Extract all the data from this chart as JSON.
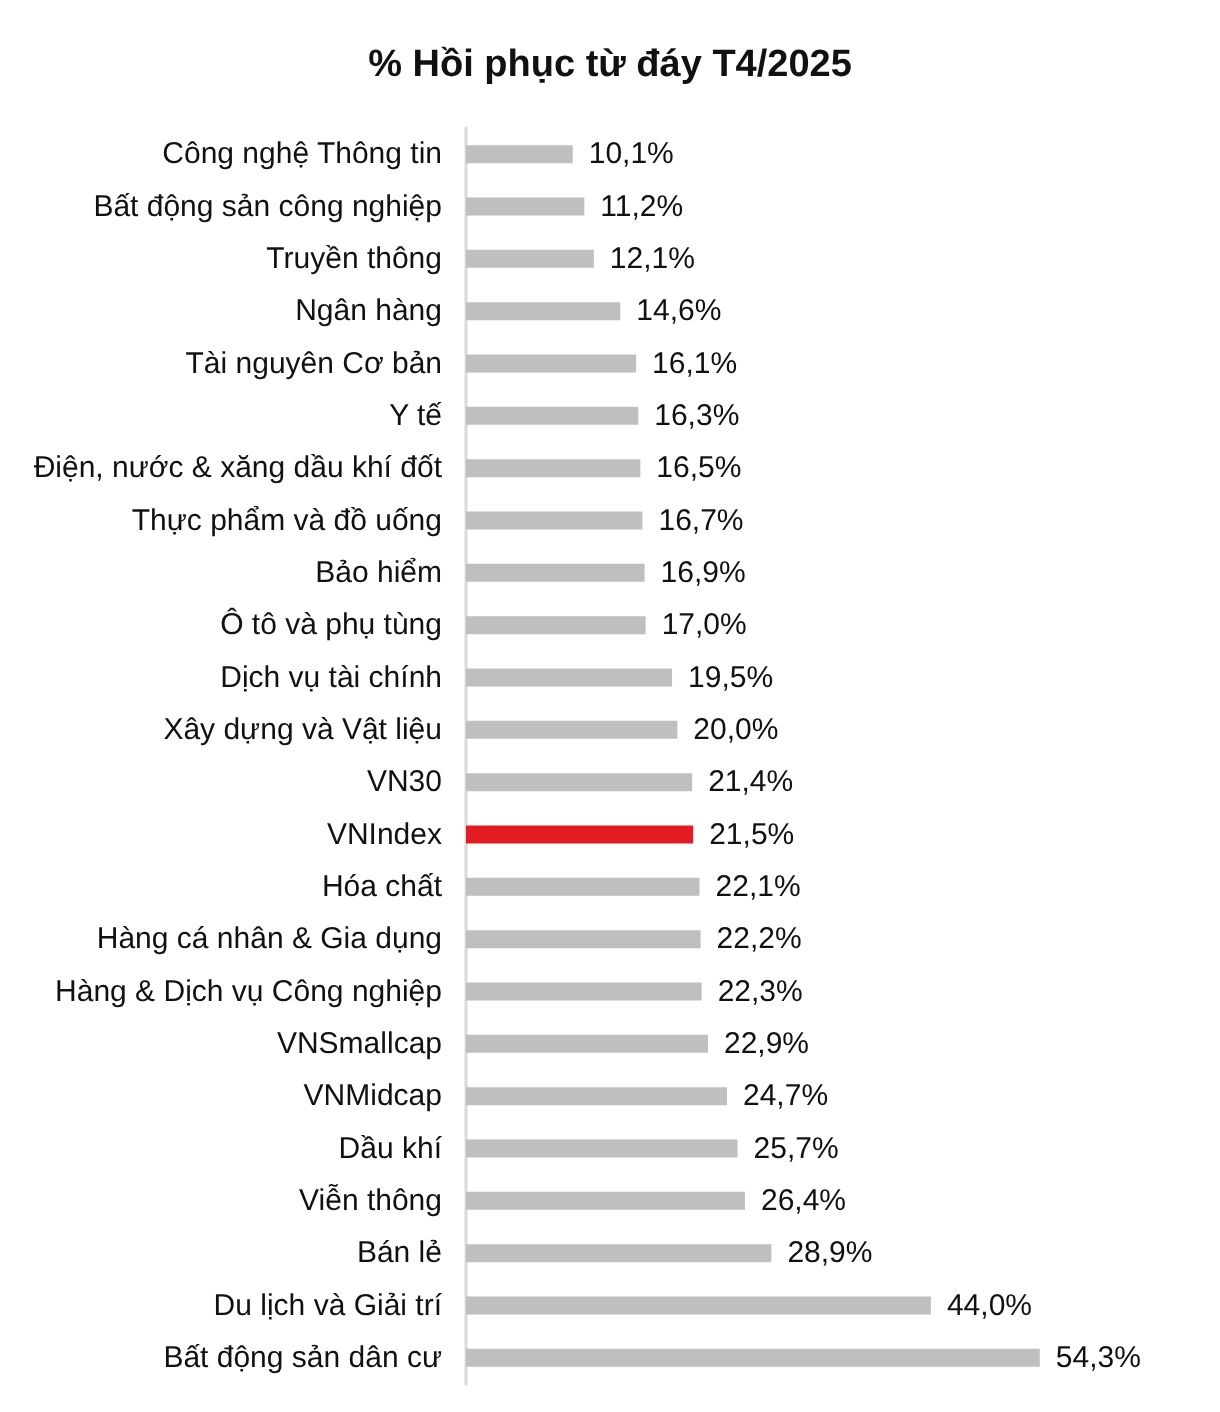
{
  "chart_data": {
    "type": "bar",
    "orientation": "horizontal",
    "title": "% Hồi phục từ đáy T4/2025",
    "categories": [
      "Công nghệ Thông tin",
      "Bất động sản công nghiệp",
      "Truyền thông",
      "Ngân hàng",
      "Tài nguyên Cơ bản",
      "Y tế",
      "Điện, nước & xăng dầu khí đốt",
      "Thực phẩm và đồ uống",
      "Bảo hiểm",
      "Ô tô và phụ tùng",
      "Dịch vụ tài chính",
      "Xây dựng và Vật liệu",
      "VN30",
      "VNIndex",
      "Hóa chất",
      "Hàng cá nhân & Gia dụng",
      "Hàng & Dịch vụ Công nghiệp",
      "VNSmallcap",
      "VNMidcap",
      "Dầu khí",
      "Viễn thông",
      "Bán lẻ",
      "Du lịch và Giải trí",
      "Bất động sản dân cư"
    ],
    "values": [
      10.1,
      11.2,
      12.1,
      14.6,
      16.1,
      16.3,
      16.5,
      16.7,
      16.9,
      17.0,
      19.5,
      20.0,
      21.4,
      21.5,
      22.1,
      22.2,
      22.3,
      22.9,
      24.7,
      25.7,
      26.4,
      28.9,
      44.0,
      54.3
    ],
    "value_labels": [
      "10,1%",
      "11,2%",
      "12,1%",
      "14,6%",
      "16,1%",
      "16,3%",
      "16,5%",
      "16,7%",
      "16,9%",
      "17,0%",
      "19,5%",
      "20,0%",
      "21,4%",
      "21,5%",
      "22,1%",
      "22,2%",
      "22,3%",
      "22,9%",
      "24,7%",
      "25,7%",
      "26,4%",
      "28,9%",
      "44,0%",
      "54,3%"
    ],
    "colors": [
      "#bfbfbf",
      "#bfbfbf",
      "#bfbfbf",
      "#bfbfbf",
      "#bfbfbf",
      "#bfbfbf",
      "#bfbfbf",
      "#bfbfbf",
      "#bfbfbf",
      "#bfbfbf",
      "#bfbfbf",
      "#bfbfbf",
      "#bfbfbf",
      "#e31b23",
      "#bfbfbf",
      "#bfbfbf",
      "#bfbfbf",
      "#bfbfbf",
      "#bfbfbf",
      "#bfbfbf",
      "#bfbfbf",
      "#bfbfbf",
      "#bfbfbf",
      "#bfbfbf"
    ]
  }
}
